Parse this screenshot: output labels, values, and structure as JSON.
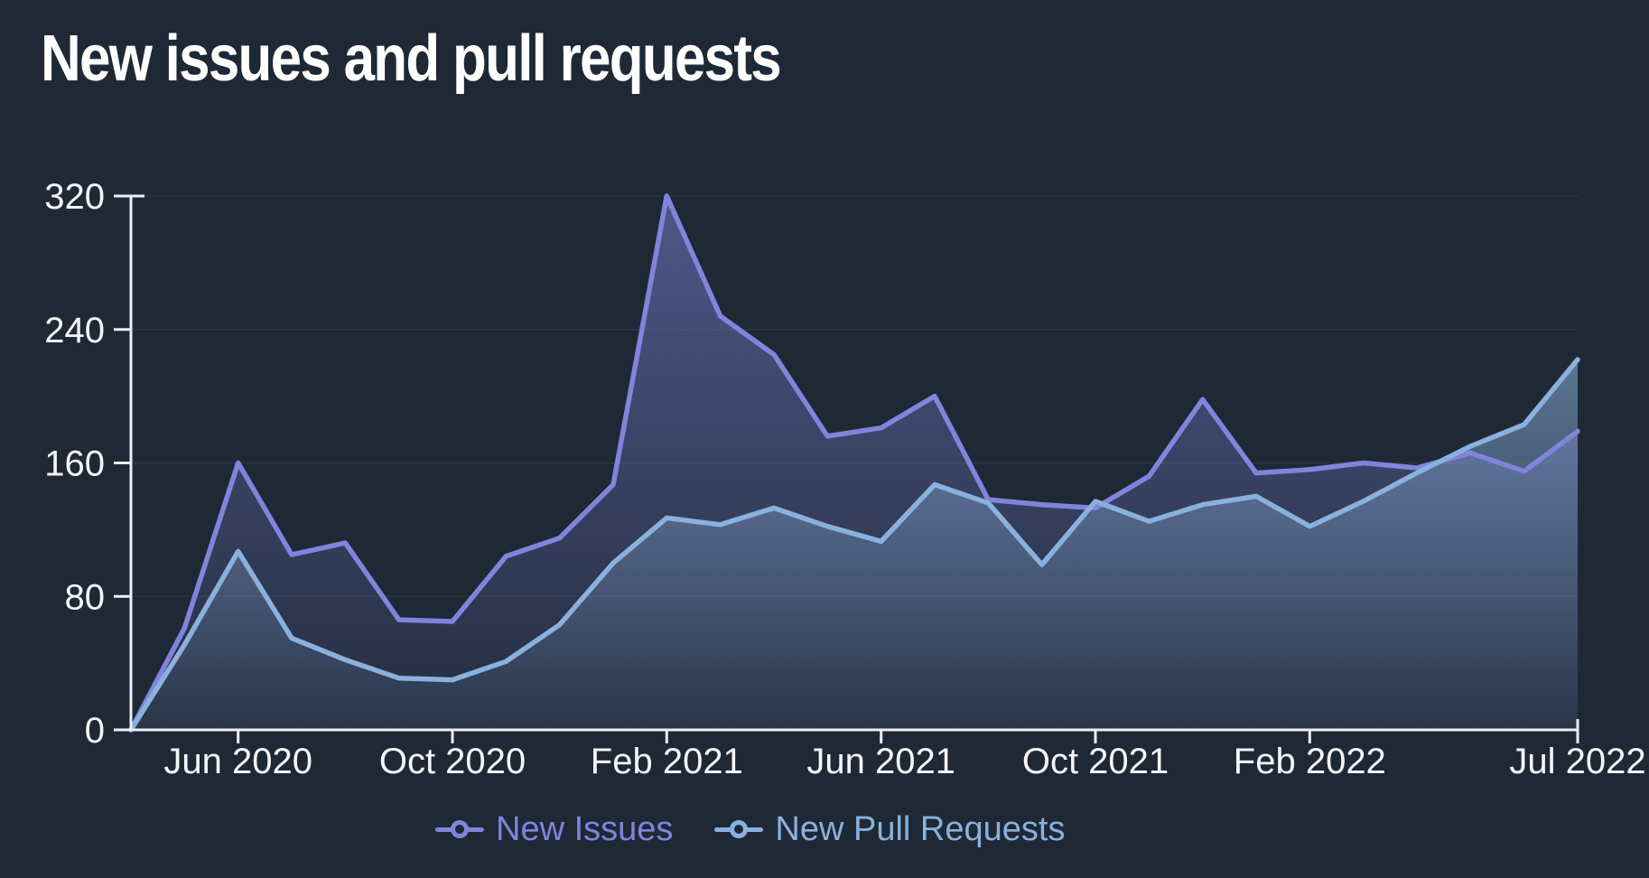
{
  "chart_data": {
    "type": "area",
    "title": "New issues and pull requests",
    "x": [
      "Apr 2020",
      "May 2020",
      "Jun 2020",
      "Jul 2020",
      "Aug 2020",
      "Sep 2020",
      "Oct 2020",
      "Nov 2020",
      "Dec 2020",
      "Jan 2021",
      "Feb 2021",
      "Mar 2021",
      "Apr 2021",
      "May 2021",
      "Jun 2021",
      "Jul 2021",
      "Aug 2021",
      "Sep 2021",
      "Oct 2021",
      "Nov 2021",
      "Dec 2021",
      "Jan 2022",
      "Feb 2022",
      "Mar 2022",
      "Apr 2022",
      "May 2022",
      "Jun 2022",
      "Jul 2022"
    ],
    "series": [
      {
        "name": "New Issues",
        "color": "#8184dc",
        "values": [
          0,
          61,
          160,
          105,
          112,
          66,
          65,
          104,
          115,
          147,
          320,
          248,
          225,
          176,
          181,
          200,
          138,
          135,
          133,
          152,
          198,
          154,
          156,
          160,
          157,
          166,
          155,
          179
        ]
      },
      {
        "name": "New Pull Requests",
        "color": "#8ab1de",
        "values": [
          0,
          51,
          107,
          55,
          42,
          31,
          30,
          41,
          63,
          100,
          127,
          123,
          133,
          122,
          113,
          147,
          136,
          99,
          137,
          125,
          135,
          140,
          122,
          137,
          154,
          170,
          183,
          222
        ]
      }
    ],
    "xlabel": "",
    "ylabel": "",
    "ylim": [
      0,
      320
    ],
    "y_ticks": [
      0,
      80,
      160,
      240,
      320
    ],
    "x_tick_labels": [
      "Jun 2020",
      "Oct 2020",
      "Feb 2021",
      "Jun 2021",
      "Oct 2021",
      "Feb 2022",
      "Jul 2022"
    ],
    "x_tick_indices": [
      2,
      6,
      10,
      14,
      18,
      22,
      27
    ],
    "grid": true,
    "legend_position": "bottom"
  },
  "colors": {
    "background": "#1f2936",
    "axis": "#eceef3",
    "tick_text": "#f5f6f9",
    "gridline": "#2a3443",
    "issues": "#8184dc",
    "pull_requests": "#8ab1de"
  }
}
